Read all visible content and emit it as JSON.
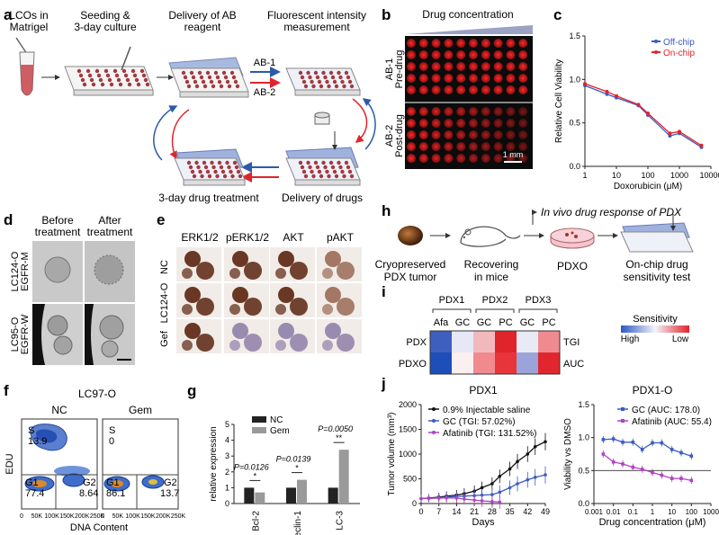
{
  "panels": {
    "a": {
      "letter": "a",
      "steps": [
        "LCOs in",
        "Matrigel",
        "Seeding &",
        "3-day culture",
        "Delivery of AB",
        "reagent",
        "Fluorescent intensity",
        "measurement",
        "3-day drug treatment",
        "Delivery of drugs"
      ],
      "arrows": [
        "AB-1",
        "AB-2"
      ]
    },
    "b": {
      "letter": "b",
      "header": "Drug concentration",
      "rows": [
        "AB-1",
        "Pre-drug",
        "AB-2",
        "Post-drug"
      ],
      "scalebar": "1 mm"
    },
    "c": {
      "letter": "c"
    },
    "d": {
      "letter": "d",
      "cols": [
        "Before",
        "treatment",
        "After",
        "treatment"
      ],
      "rows": [
        "LC124-O",
        "EGFR-M",
        "LC95-O",
        "EGFR-W"
      ]
    },
    "e": {
      "letter": "e",
      "cols": [
        "ERK1/2",
        "pERK1/2",
        "AKT",
        "pAKT"
      ],
      "rows": [
        "NC",
        "LC124-O",
        "Gef"
      ]
    },
    "f": {
      "letter": "f",
      "title": "LC97-O",
      "subs": [
        "NC",
        "Gem"
      ],
      "ylabel": "EDU",
      "xlabel": "DNA Content",
      "xticks": [
        "0",
        "50K",
        "100K",
        "150K",
        "200K",
        "250K"
      ],
      "gates": {
        "nc": [
          "S",
          "13.9",
          "G1",
          "77.4",
          "G2",
          "8.64"
        ],
        "gem": [
          "S",
          "0",
          "G1",
          "86.1",
          "G2",
          "13.7"
        ]
      }
    },
    "g": {
      "letter": "g"
    },
    "h": {
      "letter": "h",
      "top": "In vivo drug response of PDX",
      "steps": [
        "Cryopreserved",
        "PDX tumor",
        "Recovering",
        "in mice",
        "PDXO",
        "On-chip drug",
        "sensitivity test"
      ]
    },
    "i": {
      "letter": "i",
      "groups": [
        "PDX1",
        "PDX2",
        "PDX3"
      ],
      "cols": [
        "Afa",
        "GC",
        "GC",
        "PC",
        "GC",
        "PC"
      ],
      "rows": [
        "PDX",
        "PDXO"
      ],
      "right": [
        "TGI",
        "AUC"
      ],
      "cells": [
        [
          "#3f5fbf",
          "#e6e9f5",
          "#f2b9bd",
          "#e0242b",
          "#e9ebf4",
          "#ef8a90"
        ],
        [
          "#1e4fb8",
          "#fbeff0",
          "#f08a8f",
          "#e8343b",
          "#9aa4d8",
          "#e2262d"
        ]
      ],
      "legend": {
        "title": "Sensitivity",
        "high": "High",
        "low": "Low",
        "from": "#2b57c4",
        "mid": "#f4f4f8",
        "to": "#e0242b"
      }
    },
    "j": {
      "letter": "j"
    }
  },
  "chart_data": [
    {
      "id": "c",
      "type": "line",
      "xlabel": "Doxorubicin (μM)",
      "ylabel": "Relative Cell Viability",
      "xscale": "log",
      "xlim": [
        1,
        10000
      ],
      "ylim": [
        0,
        1.5
      ],
      "xticks": [
        "1",
        "10",
        "100",
        "1000",
        "10000"
      ],
      "yticks": [
        "0.0",
        "0.5",
        "1.0",
        "1.5"
      ],
      "legend_position": "top-right",
      "series": [
        {
          "name": "Off-chip",
          "color": "#3b5cc4",
          "x": [
            1,
            5,
            10,
            50,
            100,
            500,
            1000,
            5000
          ],
          "y": [
            0.93,
            0.83,
            0.79,
            0.7,
            0.59,
            0.35,
            0.38,
            0.22
          ]
        },
        {
          "name": "On-chip",
          "color": "#e0242b",
          "x": [
            1,
            5,
            10,
            50,
            100,
            500,
            1000,
            5000
          ],
          "y": [
            0.95,
            0.86,
            0.81,
            0.71,
            0.61,
            0.38,
            0.4,
            0.24
          ]
        }
      ]
    },
    {
      "id": "g",
      "type": "bar",
      "ylabel": "relative expression",
      "ylim": [
        0,
        5
      ],
      "yticks": [
        "0",
        "1",
        "2",
        "3",
        "4",
        "5"
      ],
      "categories": [
        "Bcl-2",
        "Beclin-1",
        "LC-3"
      ],
      "legend_position": "top-left",
      "series": [
        {
          "name": "NC",
          "color": "#222222",
          "values": [
            1,
            1,
            1
          ]
        },
        {
          "name": "Gem",
          "color": "#9a9a9a",
          "values": [
            0.7,
            1.5,
            3.4
          ]
        }
      ],
      "annotations": [
        {
          "p": "P=0.0126",
          "stars": "*"
        },
        {
          "p": "P=0.0139",
          "stars": "*"
        },
        {
          "p": "P=0.0050",
          "stars": "**"
        }
      ]
    },
    {
      "id": "j1",
      "type": "line",
      "title": "PDX1",
      "xlabel": "Days",
      "ylabel": "Tumor volume (mm³)",
      "xlim": [
        0,
        49
      ],
      "ylim": [
        0,
        2000
      ],
      "xticks": [
        "0",
        "7",
        "14",
        "21",
        "28",
        "35",
        "42",
        "49"
      ],
      "yticks": [
        "0",
        "500",
        "1000",
        "1500",
        "2000"
      ],
      "legend_position": "top-left",
      "series": [
        {
          "name": "0.9% Injectable saline",
          "color": "#111111",
          "x": [
            0,
            3,
            7,
            10,
            14,
            17,
            21,
            24,
            28,
            31,
            35,
            38,
            42,
            45,
            49
          ],
          "y": [
            100,
            110,
            130,
            150,
            170,
            200,
            250,
            320,
            400,
            550,
            700,
            850,
            1000,
            1150,
            1250
          ]
        },
        {
          "name": "GC (TGI: 57.02%)",
          "color": "#3b5cc4",
          "x": [
            0,
            3,
            7,
            10,
            14,
            17,
            21,
            24,
            28,
            31,
            35,
            38,
            42,
            45,
            49
          ],
          "y": [
            100,
            105,
            115,
            130,
            140,
            150,
            160,
            170,
            180,
            230,
            320,
            400,
            480,
            530,
            580
          ]
        },
        {
          "name": "Afatinib (TGI: 131.52%)",
          "color": "#b043c2",
          "x": [
            0,
            3,
            7,
            10,
            14,
            17,
            21,
            24,
            28,
            31
          ],
          "y": [
            100,
            105,
            110,
            115,
            110,
            90,
            70,
            55,
            40,
            30
          ]
        }
      ]
    },
    {
      "id": "j2",
      "type": "line",
      "title": "PDX1-O",
      "xlabel": "Drug concentration (μM)",
      "ylabel": "Viability vs DMSO",
      "xscale": "log",
      "xlim": [
        0.001,
        1000
      ],
      "ylim": [
        0,
        1.5
      ],
      "xticks": [
        "0.001",
        "0.01",
        "0.1",
        "1",
        "10",
        "100",
        "1000"
      ],
      "yticks": [
        "0.0",
        "0.5",
        "1.0",
        "1.5"
      ],
      "reference_line": 0.5,
      "legend_position": "top-right",
      "series": [
        {
          "name": "GC (AUC: 178.0)",
          "color": "#3b5cc4",
          "x": [
            0.003,
            0.01,
            0.03,
            0.1,
            0.3,
            1,
            3,
            10,
            30,
            100
          ],
          "y": [
            0.97,
            0.98,
            0.93,
            0.93,
            0.82,
            0.92,
            0.92,
            0.82,
            0.77,
            0.72
          ]
        },
        {
          "name": "Afatinib (AUC: 55.4)",
          "color": "#b043c2",
          "x": [
            0.003,
            0.01,
            0.03,
            0.1,
            0.3,
            1,
            3,
            10,
            30,
            100
          ],
          "y": [
            0.75,
            0.63,
            0.6,
            0.55,
            0.52,
            0.47,
            0.43,
            0.38,
            0.38,
            0.35
          ]
        }
      ]
    }
  ]
}
